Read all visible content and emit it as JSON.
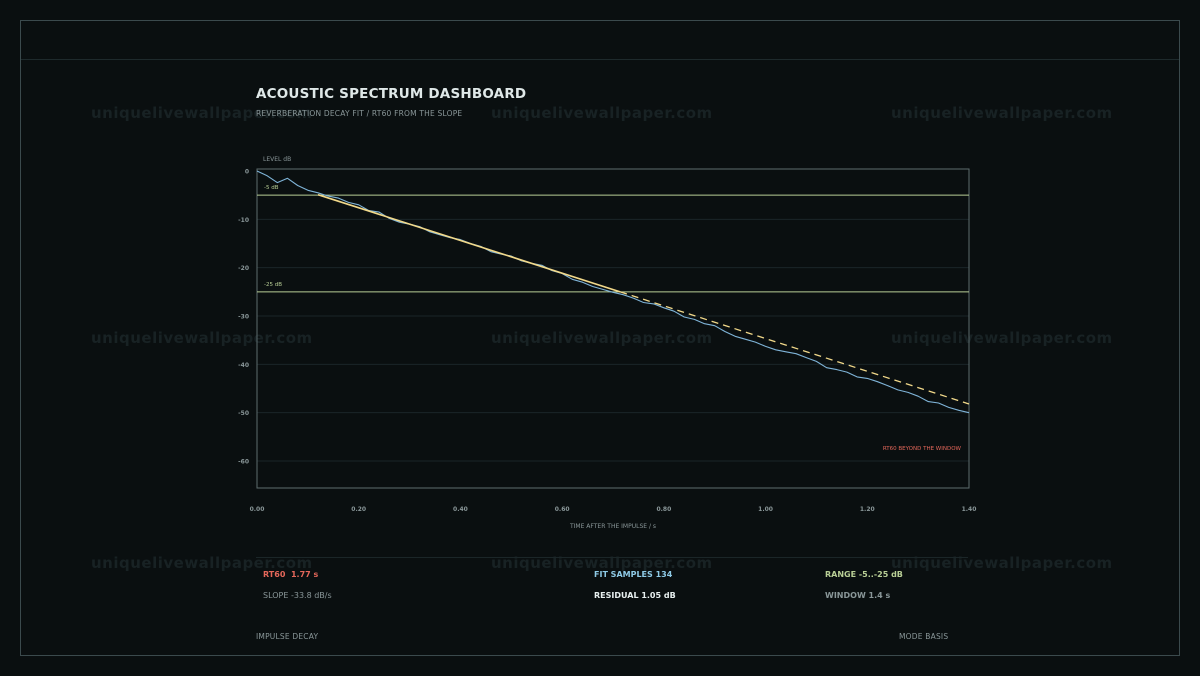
{
  "watermark": "uniquelivewallpaper.com",
  "header": {
    "title": "ACOUSTIC SPECTRUM DASHBOARD",
    "subtitle": "REVERBERATION DECAY FIT / RT60 FROM THE SLOPE"
  },
  "chart_data": {
    "type": "line",
    "ylabel": "LEVEL dB",
    "xlabel": "TIME AFTER THE IMPULSE / s",
    "xlim": [
      0,
      1.4
    ],
    "ylim": [
      -66,
      0
    ],
    "x_ticks": [
      "0.00",
      "0.20",
      "0.40",
      "0.60",
      "0.80",
      "1.00",
      "1.20",
      "1.40"
    ],
    "x_tick_values": [
      0,
      0.2,
      0.4,
      0.6,
      0.8,
      1.0,
      1.2,
      1.4
    ],
    "y_ticks": [
      "0",
      "-10",
      "-20",
      "-30",
      "-40",
      "-50",
      "-60"
    ],
    "y_tick_values": [
      0,
      -10,
      -20,
      -30,
      -40,
      -50,
      -60
    ],
    "grid": true,
    "reference_lines": [
      {
        "y": -5,
        "label": "-5 dB"
      },
      {
        "y": -25,
        "label": "-25 dB"
      }
    ],
    "series": [
      {
        "x": [
          0.0,
          0.02,
          0.04,
          0.06,
          0.08,
          0.1,
          0.12,
          0.14,
          0.16,
          0.18,
          0.2,
          0.22,
          0.24,
          0.26,
          0.28,
          0.3,
          0.32,
          0.34,
          0.36,
          0.38,
          0.4,
          0.42,
          0.44,
          0.46,
          0.48,
          0.5,
          0.52,
          0.54,
          0.56,
          0.58,
          0.6,
          0.62,
          0.64,
          0.66,
          0.68,
          0.7,
          0.72,
          0.74,
          0.76,
          0.78,
          0.8,
          0.82,
          0.84,
          0.86,
          0.88,
          0.9,
          0.92,
          0.94,
          0.96,
          0.98,
          1.0,
          1.02,
          1.04,
          1.06,
          1.08,
          1.1,
          1.12,
          1.14,
          1.16,
          1.18,
          1.2,
          1.22,
          1.24,
          1.26,
          1.28,
          1.3,
          1.32,
          1.34,
          1.36,
          1.38,
          1.4
        ],
        "values": [
          0.0,
          -1.0,
          -2.4,
          -1.5,
          -3.0,
          -4.0,
          -4.5,
          -5.2,
          -5.6,
          -6.5,
          -7.0,
          -8.2,
          -8.5,
          -9.8,
          -10.6,
          -11.0,
          -11.5,
          -12.6,
          -13.2,
          -13.8,
          -14.2,
          -15.0,
          -15.6,
          -16.7,
          -17.2,
          -17.6,
          -18.6,
          -19.1,
          -19.5,
          -20.6,
          -21.2,
          -22.4,
          -23.0,
          -23.9,
          -24.5,
          -25.1,
          -25.6,
          -26.3,
          -27.2,
          -27.5,
          -28.3,
          -29.0,
          -30.2,
          -30.7,
          -31.6,
          -32.0,
          -33.2,
          -34.2,
          -34.8,
          -35.4,
          -36.3,
          -37.0,
          -37.4,
          -37.8,
          -38.6,
          -39.4,
          -40.7,
          -41.1,
          -41.6,
          -42.6,
          -42.9,
          -43.6,
          -44.4,
          -45.3,
          -45.8,
          -46.6,
          -47.7,
          -48.0,
          -48.9,
          -49.5,
          -50.0
        ]
      }
    ],
    "fit": {
      "x": [
        0.12,
        1.4
      ],
      "values": [
        -4.9,
        -48.2
      ]
    },
    "annotation": "RT60 BEYOND THE WINDOW",
    "colors": {
      "decay": "#7fb4d8",
      "fit": "#f2d98a",
      "reference": "#b9cf96",
      "annotation": "#e4675a",
      "axis": "#5d6c6e",
      "grid": "#1b2628"
    }
  },
  "stats": {
    "rt60_label": "RT60",
    "rt60_value": "1.77 s",
    "slope": "SLOPE -33.8 dB/s",
    "fit_samples": "FIT SAMPLES 134",
    "residual": "RESIDUAL 1.05 dB",
    "range": "RANGE -5..-25 dB",
    "window": "WINDOW 1.4 s"
  },
  "footer": {
    "left": "IMPULSE DECAY",
    "right": "MODE BASIS"
  },
  "colors": {
    "rt60": "#e4675a",
    "fit_samples": "#8ecae6",
    "residual": "#e8f0f0",
    "range": "#b9cf96",
    "muted": "#8a9799"
  }
}
